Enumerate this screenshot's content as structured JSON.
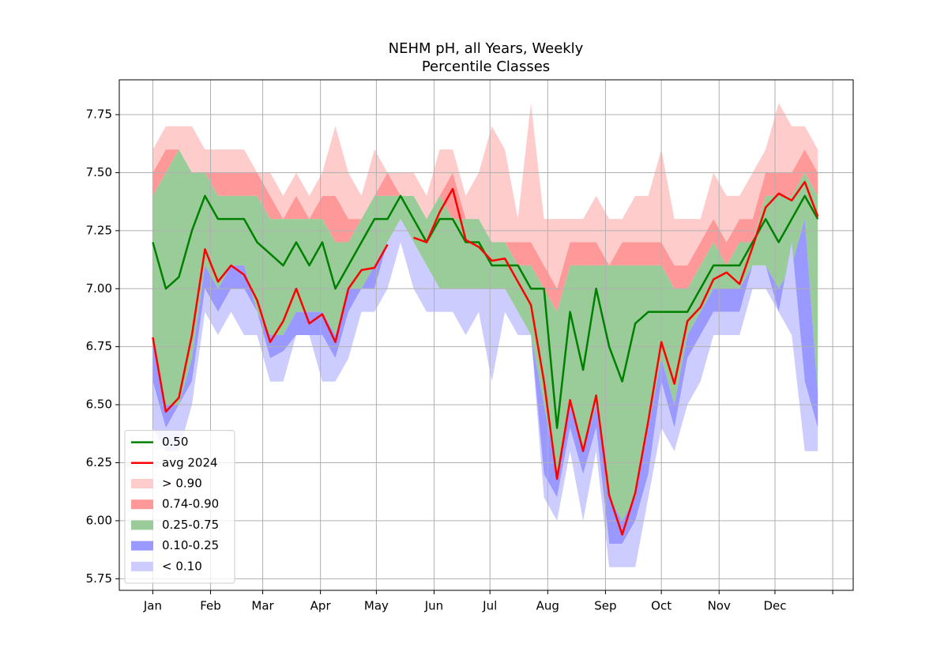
{
  "chart_data": {
    "type": "percentile-bands",
    "title": "NEHM pH, all Years, Weekly",
    "subtitle": "Percentile Classes",
    "x": [
      1,
      8,
      15,
      22,
      29,
      36,
      43,
      50,
      57,
      64,
      71,
      78,
      85,
      92,
      99,
      106,
      113,
      120,
      127,
      134,
      141,
      148,
      155,
      162,
      169,
      176,
      183,
      190,
      197,
      204,
      211,
      218,
      225,
      232,
      239,
      246,
      253,
      260,
      267,
      274,
      281,
      288,
      295,
      302,
      309,
      316,
      323,
      330,
      337,
      344,
      351,
      358
    ],
    "xlim": [
      -17,
      377
    ],
    "xticks": [
      {
        "value": 1,
        "label": "Jan"
      },
      {
        "value": 32,
        "label": "Feb"
      },
      {
        "value": 60,
        "label": "Mar"
      },
      {
        "value": 91,
        "label": "Apr"
      },
      {
        "value": 121,
        "label": "May"
      },
      {
        "value": 152,
        "label": "Jun"
      },
      {
        "value": 182,
        "label": "Jul"
      },
      {
        "value": 213,
        "label": "Aug"
      },
      {
        "value": 244,
        "label": "Sep"
      },
      {
        "value": 274,
        "label": "Oct"
      },
      {
        "value": 305,
        "label": "Nov"
      },
      {
        "value": 335,
        "label": "Dec"
      },
      {
        "value": 366,
        "label": null
      }
    ],
    "ylim": [
      5.7,
      7.9
    ],
    "yticks": [
      5.75,
      {
        "value": 6,
        "label": "6.00"
      },
      6.25,
      {
        "value": 6.5,
        "label": "6.50"
      },
      6.75,
      {
        "value": 7,
        "label": "7.00"
      },
      7.25,
      {
        "value": 7.5,
        "label": "7.50"
      },
      7.75
    ],
    "grid": true,
    "legend": "lower left",
    "boundaries": [
      [
        7.6,
        7.7,
        7.7,
        7.7,
        7.6,
        7.6,
        7.6,
        7.6,
        7.5,
        7.5,
        7.4,
        7.5,
        7.4,
        7.5,
        7.7,
        7.5,
        7.4,
        7.6,
        7.5,
        7.5,
        7.5,
        7.4,
        7.6,
        7.6,
        7.4,
        7.5,
        7.7,
        7.6,
        7.3,
        7.8,
        7.3,
        7.3,
        7.3,
        7.3,
        7.4,
        7.3,
        7.3,
        7.4,
        7.4,
        7.6,
        7.3,
        7.3,
        7.3,
        7.5,
        7.4,
        7.4,
        7.5,
        7.6,
        7.8,
        7.7,
        7.7,
        7.6
      ],
      [
        7.5,
        7.6,
        7.6,
        7.5,
        7.5,
        7.5,
        7.5,
        7.5,
        7.5,
        7.4,
        7.3,
        7.4,
        7.3,
        7.4,
        7.4,
        7.3,
        7.3,
        7.4,
        7.5,
        7.4,
        7.4,
        7.3,
        7.4,
        7.5,
        7.3,
        7.3,
        7.2,
        7.2,
        7.2,
        7.2,
        7.1,
        7.0,
        7.2,
        7.2,
        7.2,
        7.1,
        7.2,
        7.2,
        7.2,
        7.2,
        7.1,
        7.1,
        7.2,
        7.3,
        7.2,
        7.3,
        7.3,
        7.5,
        7.5,
        7.5,
        7.6,
        7.5
      ],
      [
        7.4,
        7.5,
        7.6,
        7.5,
        7.5,
        7.4,
        7.4,
        7.4,
        7.4,
        7.3,
        7.3,
        7.3,
        7.3,
        7.3,
        7.2,
        7.2,
        7.3,
        7.4,
        7.4,
        7.4,
        7.4,
        7.3,
        7.4,
        7.3,
        7.3,
        7.3,
        7.2,
        7.2,
        7.1,
        7.1,
        7.0,
        6.9,
        7.1,
        7.1,
        7.1,
        7.1,
        7.1,
        7.1,
        7.1,
        7.1,
        7.0,
        7.0,
        7.1,
        7.2,
        7.1,
        7.2,
        7.2,
        7.4,
        7.4,
        7.4,
        7.5,
        7.4
      ],
      [
        6.8,
        6.5,
        6.5,
        6.7,
        7.1,
        7.0,
        7.1,
        7.1,
        6.9,
        6.8,
        6.8,
        6.9,
        6.9,
        6.9,
        6.8,
        7.0,
        7.0,
        7.1,
        7.2,
        7.3,
        7.2,
        7.1,
        7.0,
        7.0,
        7.0,
        7.0,
        7.0,
        7.0,
        6.9,
        6.8,
        6.5,
        6.2,
        6.5,
        6.3,
        6.5,
        6.1,
        6.0,
        6.1,
        6.4,
        6.7,
        6.5,
        6.8,
        6.9,
        7.0,
        7.0,
        7.0,
        7.1,
        7.1,
        7.0,
        7.1,
        7.3,
        6.55
      ],
      [
        6.6,
        6.4,
        6.5,
        6.6,
        7.0,
        6.9,
        7.0,
        7.0,
        6.9,
        6.7,
        6.73,
        6.8,
        6.8,
        6.8,
        6.7,
        6.9,
        7.0,
        7.0,
        7.2,
        7.3,
        7.2,
        7.1,
        7.0,
        7.0,
        7.0,
        7.0,
        7.0,
        7.0,
        6.9,
        6.8,
        6.2,
        6.1,
        6.4,
        6.2,
        6.4,
        5.9,
        5.9,
        6.0,
        6.2,
        6.6,
        6.4,
        6.7,
        6.8,
        6.9,
        6.9,
        6.9,
        7.1,
        7.1,
        6.9,
        7.2,
        6.6,
        6.4
      ],
      [
        6.4,
        6.3,
        6.3,
        6.5,
        6.9,
        6.8,
        6.9,
        6.8,
        6.8,
        6.6,
        6.6,
        6.8,
        6.8,
        6.6,
        6.6,
        6.7,
        6.9,
        6.9,
        7.0,
        7.2,
        7.0,
        6.9,
        6.9,
        6.9,
        6.8,
        6.9,
        6.6,
        6.9,
        6.8,
        6.8,
        6.1,
        6.0,
        6.3,
        6.0,
        6.3,
        5.8,
        5.8,
        5.8,
        6.1,
        6.4,
        6.3,
        6.5,
        6.6,
        6.8,
        6.8,
        6.8,
        7.0,
        7.0,
        6.9,
        6.8,
        6.3,
        6.3
      ]
    ],
    "bands": [
      {
        "name": "> 0.90",
        "color": "#ffcccc"
      },
      {
        "name": "0.74-0.90",
        "color": "#ff9999"
      },
      {
        "name": "0.25-0.75",
        "color": "#99cc99"
      },
      {
        "name": "0.10-0.25",
        "color": "#9999ff"
      },
      {
        "name": "< 0.10",
        "color": "#ccccff"
      }
    ],
    "series": [
      {
        "name": "0.50",
        "color": "#008000",
        "values": [
          7.2,
          7.0,
          7.05,
          7.25,
          7.4,
          7.3,
          7.3,
          7.3,
          7.2,
          7.15,
          7.1,
          7.2,
          7.1,
          7.2,
          7.0,
          7.1,
          7.2,
          7.3,
          7.3,
          7.4,
          7.3,
          7.2,
          7.3,
          7.3,
          7.2,
          7.2,
          7.1,
          7.1,
          7.1,
          7.0,
          7.0,
          6.4,
          6.9,
          6.65,
          7.0,
          6.75,
          6.6,
          6.85,
          6.9,
          6.9,
          6.9,
          6.9,
          7.0,
          7.1,
          7.1,
          7.1,
          7.2,
          7.3,
          7.2,
          7.3,
          7.4,
          7.3
        ]
      },
      {
        "name": "avg 2024",
        "color": "#ff0000",
        "values": [
          6.79,
          6.47,
          6.53,
          6.8,
          7.17,
          7.03,
          7.1,
          7.06,
          6.95,
          6.77,
          6.86,
          7.0,
          6.85,
          6.89,
          6.77,
          7.0,
          7.08,
          7.09,
          7.19,
          null,
          7.22,
          7.2,
          7.33,
          7.43,
          7.21,
          7.18,
          7.12,
          7.13,
          7.03,
          6.93,
          6.6,
          6.18,
          6.52,
          6.3,
          6.54,
          6.11,
          5.94,
          6.12,
          6.43,
          6.77,
          6.59,
          6.86,
          6.92,
          7.04,
          7.07,
          7.02,
          7.18,
          7.35,
          7.41,
          7.38,
          7.46,
          7.31
        ]
      }
    ]
  }
}
